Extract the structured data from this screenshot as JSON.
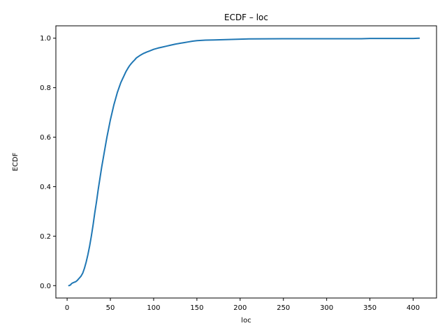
{
  "chart_data": {
    "type": "line",
    "title": "ECDF – loc",
    "xlabel": "loc",
    "ylabel": "ECDF",
    "xlim": [
      -13,
      427
    ],
    "ylim": [
      -0.05,
      1.05
    ],
    "x_ticks": [
      0,
      50,
      100,
      150,
      200,
      250,
      300,
      350,
      400
    ],
    "y_ticks": [
      0.0,
      0.2,
      0.4,
      0.6,
      0.8,
      1.0
    ],
    "y_tick_format": "fixed1",
    "grid": false,
    "legend": "none",
    "series": [
      {
        "color": "#1f77b4",
        "x": [
          2,
          4,
          5,
          7,
          10,
          12,
          14,
          16,
          18,
          20,
          22,
          24,
          26,
          28,
          30,
          32,
          34,
          36,
          38,
          40,
          42,
          44,
          46,
          48,
          50,
          52,
          54,
          56,
          58,
          60,
          62,
          64,
          66,
          68,
          70,
          72,
          74,
          76,
          78,
          80,
          82,
          85,
          88,
          90,
          92,
          95,
          100,
          105,
          110,
          115,
          120,
          125,
          130,
          135,
          140,
          145,
          150,
          160,
          170,
          180,
          190,
          200,
          210,
          250,
          300,
          340,
          350,
          400,
          407
        ],
        "y": [
          0.0,
          0.003,
          0.008,
          0.012,
          0.016,
          0.022,
          0.03,
          0.038,
          0.05,
          0.07,
          0.095,
          0.125,
          0.16,
          0.2,
          0.245,
          0.295,
          0.34,
          0.39,
          0.435,
          0.48,
          0.52,
          0.56,
          0.6,
          0.635,
          0.67,
          0.7,
          0.73,
          0.755,
          0.78,
          0.8,
          0.82,
          0.835,
          0.85,
          0.865,
          0.877,
          0.888,
          0.897,
          0.905,
          0.912,
          0.92,
          0.925,
          0.932,
          0.938,
          0.941,
          0.944,
          0.948,
          0.955,
          0.96,
          0.964,
          0.968,
          0.972,
          0.976,
          0.979,
          0.982,
          0.985,
          0.988,
          0.99,
          0.992,
          0.993,
          0.994,
          0.995,
          0.996,
          0.997,
          0.998,
          0.998,
          0.998,
          0.999,
          0.999,
          1.0
        ]
      }
    ]
  }
}
